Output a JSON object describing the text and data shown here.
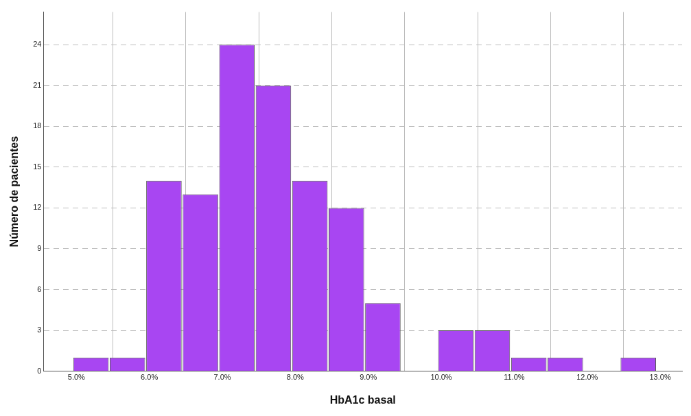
{
  "chart_data": {
    "type": "histogram",
    "xlabel": "HbA1c basal",
    "ylabel": "Número de pacientes",
    "bins": [
      4.95,
      5.45,
      5.95,
      6.45,
      6.95,
      7.45,
      7.95,
      8.45,
      8.95,
      9.45,
      9.95,
      10.45,
      10.95,
      11.45,
      11.95,
      12.45,
      12.95
    ],
    "values": [
      1,
      1,
      14,
      13,
      24,
      21,
      14,
      12,
      5,
      0,
      3,
      3,
      1,
      1,
      0,
      1
    ],
    "color": "#a846f2",
    "xlim": [
      4.55,
      13.3
    ],
    "xticks": [
      {
        "value": 5,
        "label": "5.0%"
      },
      {
        "value": 6,
        "label": "6.0%"
      },
      {
        "value": 7,
        "label": "7.0%"
      },
      {
        "value": 8,
        "label": "8.0%"
      },
      {
        "value": 9,
        "label": "9.0%"
      },
      {
        "value": 10,
        "label": "10.0%"
      },
      {
        "value": 11,
        "label": "11.0%"
      },
      {
        "value": 12,
        "label": "12.0%"
      },
      {
        "value": 13,
        "label": "13.0%"
      }
    ],
    "ylim": [
      0,
      26.4
    ],
    "yticks": [
      0,
      3,
      6,
      9,
      12,
      15,
      18,
      21,
      24
    ],
    "grid": true
  }
}
